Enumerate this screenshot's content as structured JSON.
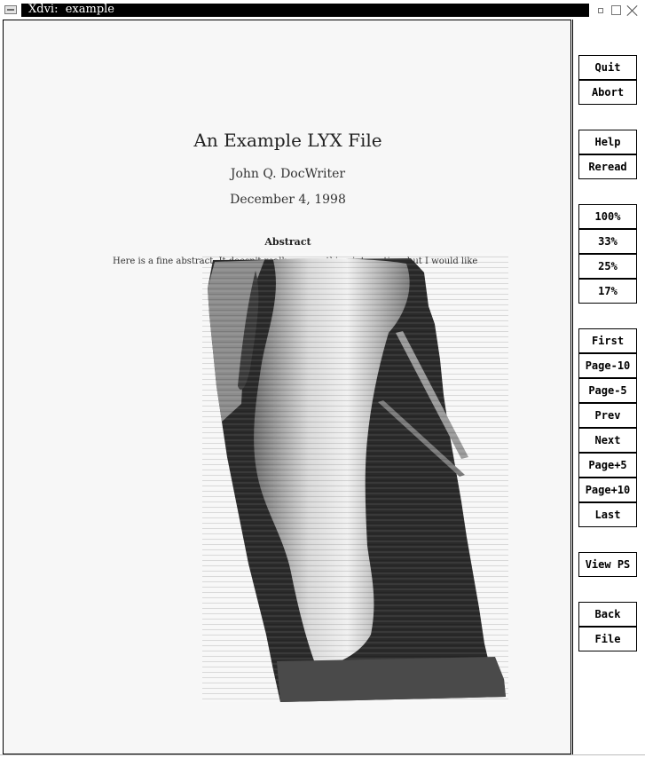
{
  "window": {
    "title": "Xdvi:  example"
  },
  "document": {
    "title": "An Example LYX File",
    "author": "John Q. DocWriter",
    "date": "December 4, 1998",
    "abstract_heading": "Abstract",
    "abstract_text": "Here is a fine abstract. It doesn't really say anything interesting, but I would like",
    "embedded_image": "grayscale-tornado-image"
  },
  "sidebar": {
    "buttons": [
      {
        "label": "Quit"
      },
      {
        "label": "Abort"
      },
      {
        "label": "Help"
      },
      {
        "label": "Reread"
      },
      {
        "label": "100%"
      },
      {
        "label": "33%"
      },
      {
        "label": "25%"
      },
      {
        "label": "17%"
      },
      {
        "label": "First"
      },
      {
        "label": "Page-10"
      },
      {
        "label": "Page-5"
      },
      {
        "label": "Prev"
      },
      {
        "label": "Next"
      },
      {
        "label": "Page+5"
      },
      {
        "label": "Page+10"
      },
      {
        "label": "Last"
      },
      {
        "label": "View PS"
      },
      {
        "label": "Back"
      },
      {
        "label": "File"
      }
    ]
  }
}
